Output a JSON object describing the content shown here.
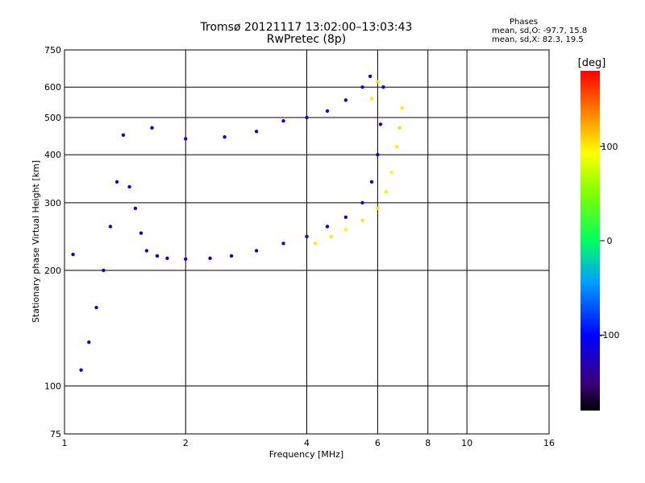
{
  "chart_data": {
    "type": "scatter",
    "title": "Tromsø 20121117 13:02:00–13:03:43",
    "subtitle": "RwPretec (8p)",
    "xlabel": "Frequency [MHz]",
    "ylabel": "Stationary phase Virtual Height [km]",
    "x_scale": "log",
    "y_scale": "log",
    "xlim": [
      1,
      16
    ],
    "ylim": [
      75,
      750
    ],
    "x_ticks": [
      1,
      2,
      4,
      6,
      8,
      10,
      16
    ],
    "x_ticklabels": [
      "1",
      "2",
      "4",
      "6",
      "8",
      "10",
      "16"
    ],
    "y_ticks": [
      75,
      100,
      200,
      300,
      400,
      500,
      600,
      750
    ],
    "y_ticklabels": [
      "75",
      "100",
      "200",
      "300",
      "400",
      "500",
      "600",
      "750"
    ],
    "grid": true,
    "phases": {
      "heading": "Phases",
      "line_o": "mean, sd,O: -97.7, 15.8",
      "line_x": "mean, sd,X: 82.3, 19.5"
    },
    "colorbar": {
      "label": "[deg]",
      "ticks": [
        100,
        0,
        -100
      ],
      "ticklabels": [
        "100",
        "0",
        "-100"
      ],
      "range": [
        -180,
        180
      ]
    },
    "series": [
      {
        "name": "O",
        "points": [
          [
            1.05,
            220,
            -120
          ],
          [
            1.1,
            110,
            -110
          ],
          [
            1.15,
            130,
            -115
          ],
          [
            1.2,
            160,
            -125
          ],
          [
            1.25,
            200,
            -120
          ],
          [
            1.3,
            260,
            -115
          ],
          [
            1.35,
            340,
            -110
          ],
          [
            1.4,
            450,
            -120
          ],
          [
            1.45,
            330,
            -115
          ],
          [
            1.5,
            290,
            -120
          ],
          [
            1.55,
            250,
            -115
          ],
          [
            1.6,
            225,
            -120
          ],
          [
            1.7,
            218,
            -120
          ],
          [
            1.8,
            215,
            -115
          ],
          [
            2.0,
            214,
            -120
          ],
          [
            2.3,
            215,
            -120
          ],
          [
            2.6,
            218,
            -115
          ],
          [
            3.0,
            225,
            -120
          ],
          [
            3.5,
            235,
            -115
          ],
          [
            4.0,
            245,
            -120
          ],
          [
            4.5,
            260,
            -115
          ],
          [
            5.0,
            275,
            -120
          ],
          [
            5.5,
            300,
            -115
          ],
          [
            5.8,
            340,
            -120
          ],
          [
            6.0,
            400,
            -115
          ],
          [
            6.1,
            480,
            -120
          ],
          [
            6.2,
            600,
            -115
          ],
          [
            1.65,
            470,
            -110
          ],
          [
            2.0,
            440,
            -120
          ],
          [
            2.5,
            445,
            -115
          ],
          [
            3.0,
            460,
            -110
          ],
          [
            3.5,
            490,
            -120
          ],
          [
            4.0,
            500,
            -115
          ],
          [
            4.5,
            520,
            -120
          ],
          [
            5.0,
            555,
            -115
          ],
          [
            5.5,
            600,
            -110
          ],
          [
            5.75,
            640,
            -115
          ]
        ]
      },
      {
        "name": "X",
        "points": [
          [
            4.2,
            235,
            100
          ],
          [
            4.6,
            245,
            100
          ],
          [
            5.0,
            255,
            95
          ],
          [
            5.5,
            270,
            100
          ],
          [
            6.0,
            290,
            105
          ],
          [
            6.3,
            320,
            100
          ],
          [
            6.5,
            360,
            95
          ],
          [
            6.7,
            420,
            100
          ],
          [
            6.8,
            470,
            105
          ],
          [
            6.9,
            530,
            100
          ],
          [
            5.8,
            560,
            100
          ],
          [
            6.0,
            620,
            105
          ]
        ]
      }
    ]
  }
}
